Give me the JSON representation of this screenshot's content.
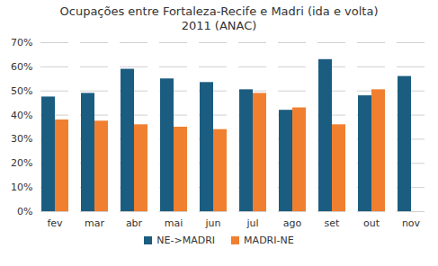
{
  "chart_data": {
    "type": "bar",
    "title": "Ocupações entre Fortaleza-Recife e Madri (ida e volta)",
    "subtitle": "2011 (ANAC)",
    "categories": [
      "fev",
      "mar",
      "abr",
      "mai",
      "jun",
      "jul",
      "ago",
      "set",
      "out",
      "nov"
    ],
    "series": [
      {
        "name": "NE->MADRI",
        "color": "#1b5d80",
        "values": [
          47.5,
          49,
          59,
          55,
          53.5,
          50.5,
          42,
          63,
          48,
          56
        ]
      },
      {
        "name": "MADRI-NE",
        "color": "#f08030",
        "values": [
          38,
          37.5,
          36,
          35,
          34,
          49,
          43,
          36,
          50.5,
          null
        ]
      }
    ],
    "ylim": [
      0,
      70
    ],
    "yticks": [
      {
        "value": 0,
        "label": "0%"
      },
      {
        "value": 10,
        "label": "10%"
      },
      {
        "value": 20,
        "label": "20%"
      },
      {
        "value": 30,
        "label": "30%"
      },
      {
        "value": 40,
        "label": "40%"
      },
      {
        "value": 50,
        "label": "50%"
      },
      {
        "value": 60,
        "label": "60%"
      },
      {
        "value": 70,
        "label": "70%"
      }
    ],
    "grid": true,
    "legend": "bottom"
  }
}
